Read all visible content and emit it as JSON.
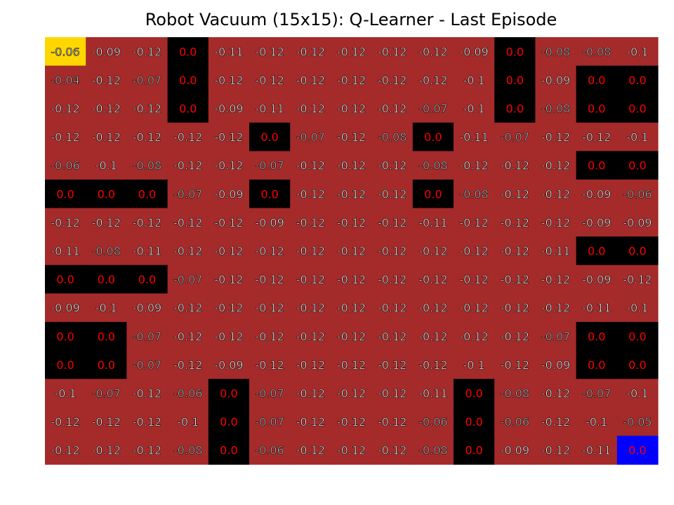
{
  "chart_data": {
    "type": "heatmap",
    "title": "Robot Vacuum (15x15): Q-Learner - Last Episode",
    "rows": 15,
    "cols": 15,
    "values": [
      [
        "-0.06",
        "-0.09",
        "-0.12",
        "0.0",
        "-0.11",
        "-0.12",
        "-0.12",
        "-0.12",
        "-0.12",
        "-0.12",
        "-0.09",
        "0.0",
        "-0.08",
        "-0.08",
        "-0.1"
      ],
      [
        "-0.04",
        "-0.12",
        "-0.07",
        "0.0",
        "-0.12",
        "-0.12",
        "-0.12",
        "-0.12",
        "-0.12",
        "-0.12",
        "-0.1",
        "0.0",
        "-0.09",
        "0.0",
        "0.0"
      ],
      [
        "-0.12",
        "-0.12",
        "-0.12",
        "0.0",
        "-0.09",
        "-0.11",
        "-0.12",
        "-0.12",
        "-0.12",
        "-0.07",
        "-0.1",
        "0.0",
        "-0.08",
        "0.0",
        "0.0"
      ],
      [
        "-0.12",
        "-0.12",
        "-0.12",
        "-0.12",
        "-0.12",
        "0.0",
        "-0.07",
        "-0.12",
        "-0.08",
        "0.0",
        "-0.11",
        "-0.07",
        "-0.12",
        "-0.12",
        "-0.1"
      ],
      [
        "-0.06",
        "-0.1",
        "-0.08",
        "-0.12",
        "-0.12",
        "-0.07",
        "-0.12",
        "-0.12",
        "-0.12",
        "-0.08",
        "-0.12",
        "-0.12",
        "-0.12",
        "0.0",
        "0.0"
      ],
      [
        "0.0",
        "0.0",
        "0.0",
        "-0.07",
        "-0.09",
        "0.0",
        "-0.12",
        "-0.12",
        "-0.12",
        "0.0",
        "-0.08",
        "-0.12",
        "-0.12",
        "-0.09",
        "-0.06"
      ],
      [
        "-0.12",
        "-0.12",
        "-0.12",
        "-0.12",
        "-0.12",
        "-0.09",
        "-0.12",
        "-0.12",
        "-0.12",
        "-0.11",
        "-0.12",
        "-0.12",
        "-0.12",
        "-0.09",
        "-0.09"
      ],
      [
        "-0.11",
        "-0.08",
        "-0.11",
        "-0.12",
        "-0.12",
        "-0.12",
        "-0.12",
        "-0.12",
        "-0.12",
        "-0.12",
        "-0.12",
        "-0.12",
        "-0.11",
        "0.0",
        "0.0"
      ],
      [
        "0.0",
        "0.0",
        "0.0",
        "-0.07",
        "-0.12",
        "-0.12",
        "-0.12",
        "-0.12",
        "-0.12",
        "-0.12",
        "-0.12",
        "-0.12",
        "-0.12",
        "-0.09",
        "-0.12"
      ],
      [
        "-0.09",
        "-0.1",
        "-0.09",
        "-0.12",
        "-0.12",
        "-0.12",
        "-0.12",
        "-0.12",
        "-0.12",
        "-0.12",
        "-0.12",
        "-0.12",
        "-0.12",
        "-0.11",
        "-0.1"
      ],
      [
        "0.0",
        "0.0",
        "-0.07",
        "-0.12",
        "-0.12",
        "-0.12",
        "-0.12",
        "-0.12",
        "-0.12",
        "-0.12",
        "-0.12",
        "-0.12",
        "-0.07",
        "0.0",
        "0.0"
      ],
      [
        "0.0",
        "0.0",
        "-0.07",
        "-0.12",
        "-0.09",
        "-0.12",
        "-0.12",
        "-0.12",
        "-0.12",
        "-0.12",
        "-0.1",
        "-0.12",
        "-0.09",
        "0.0",
        "0.0"
      ],
      [
        "-0.1",
        "-0.07",
        "-0.12",
        "-0.06",
        "0.0",
        "-0.07",
        "-0.12",
        "-0.12",
        "-0.12",
        "-0.11",
        "0.0",
        "-0.08",
        "-0.12",
        "-0.07",
        "-0.1"
      ],
      [
        "-0.12",
        "-0.12",
        "-0.12",
        "-0.1",
        "0.0",
        "-0.07",
        "-0.12",
        "-0.12",
        "-0.12",
        "-0.06",
        "0.0",
        "-0.06",
        "-0.12",
        "-0.1",
        "-0.05"
      ],
      [
        "-0.12",
        "-0.12",
        "-0.12",
        "-0.08",
        "0.0",
        "-0.06",
        "-0.12",
        "-0.12",
        "-0.12",
        "-0.08",
        "0.0",
        "-0.09",
        "-0.12",
        "-0.11",
        "0.0"
      ]
    ],
    "cell_types": [
      "FFFOFFFFFFFOFFF",
      "FFFOFFFFFFFOFOO",
      "FFFOFFFFFFFOFOO",
      "FFFFFOFFFOFFFFF",
      "FFFFFFFFFFFFFOO",
      "OOOFFOFFFOFFFFF",
      "FFFFFFFFFFFFFFF",
      "FFFFFFFFFFFFFOO",
      "OOOFFFFFFFFFFFF",
      "FFFFFFFFFFFFFFF",
      "OOFFFFFFFFFFFOO",
      "OOFFFFFFFFFFFOO",
      "FFFFOFFFFFOFFFF",
      "FFFFOFFFFFOFFFF",
      "FFFFOFFFFFOFFFG"
    ],
    "start_cell": [
      0,
      0
    ],
    "goal_cell": [
      14,
      14
    ],
    "colors": {
      "floor": "#a52a2a",
      "obstacle": "#000000",
      "start": "#ffd700",
      "goal": "#0000ff",
      "text_light": "#ffffff",
      "text_zero": "#ff0000",
      "text_dim": "#c8c8c8"
    }
  }
}
